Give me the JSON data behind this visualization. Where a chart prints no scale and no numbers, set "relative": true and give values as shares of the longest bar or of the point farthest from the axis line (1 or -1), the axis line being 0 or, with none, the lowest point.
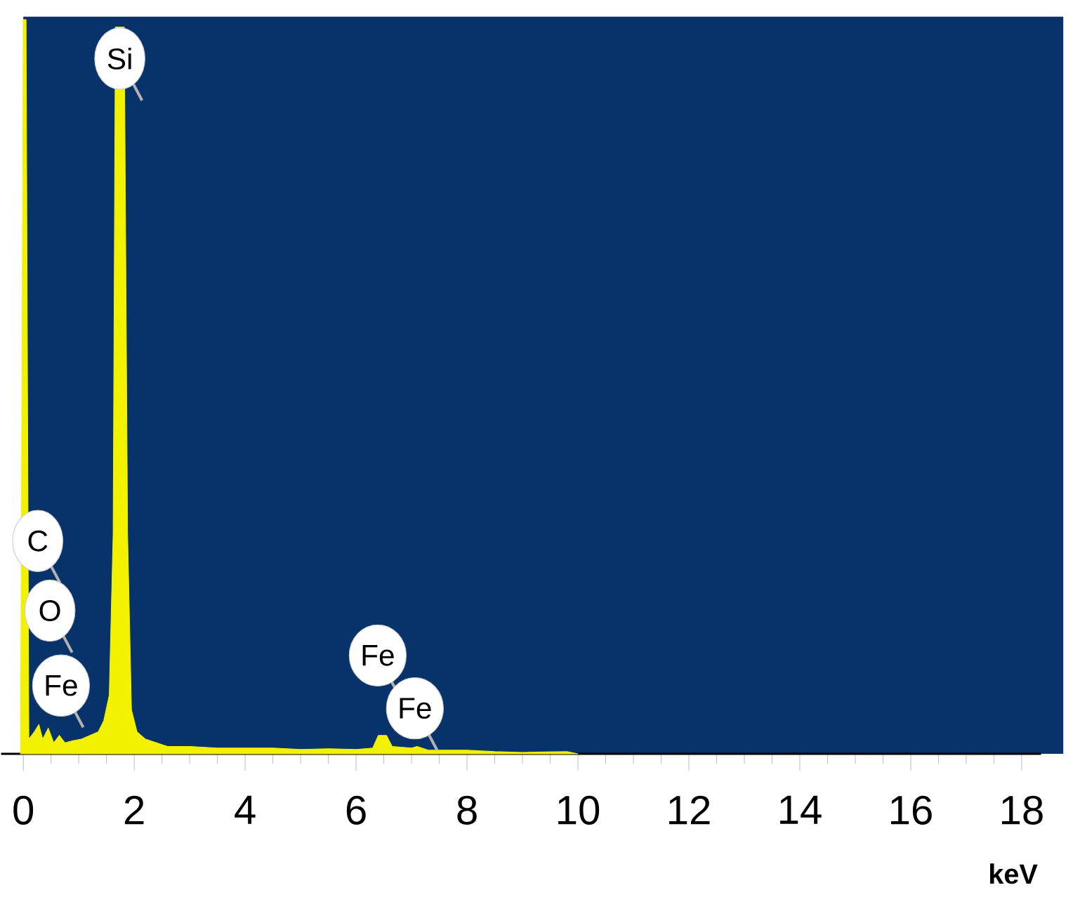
{
  "chart_data": {
    "type": "area",
    "relative": true,
    "xlabel": "keV",
    "color": "#f2f200",
    "x": [
      -0.05,
      0.0,
      0.05,
      0.1,
      0.2,
      0.28,
      0.35,
      0.45,
      0.55,
      0.65,
      0.75,
      0.9,
      1.05,
      1.2,
      1.35,
      1.45,
      1.55,
      1.62,
      1.66,
      1.82,
      1.88,
      1.95,
      2.05,
      2.2,
      2.4,
      2.6,
      3.0,
      3.5,
      4.0,
      4.5,
      5.0,
      5.5,
      6.0,
      6.3,
      6.4,
      6.55,
      6.65,
      7.0,
      7.1,
      7.3,
      8.0,
      8.5,
      9.0,
      9.8,
      10.0
    ],
    "values": [
      0,
      1.0,
      1.0,
      0.02,
      0.03,
      0.04,
      0.02,
      0.035,
      0.015,
      0.025,
      0.015,
      0.018,
      0.02,
      0.025,
      0.03,
      0.045,
      0.08,
      0.3,
      0.99,
      0.99,
      0.3,
      0.06,
      0.03,
      0.02,
      0.015,
      0.01,
      0.01,
      0.008,
      0.008,
      0.008,
      0.006,
      0.007,
      0.006,
      0.008,
      0.025,
      0.025,
      0.01,
      0.008,
      0.01,
      0.005,
      0.005,
      0.003,
      0.002,
      0.003,
      0
    ],
    "xlim": [
      -0.4,
      18.35
    ],
    "xticks": [
      0,
      2,
      4,
      6,
      8,
      10,
      12,
      14,
      16,
      18
    ],
    "annotations": [
      {
        "text": "Si",
        "x": 1.74,
        "y": 0.947
      },
      {
        "text": "C",
        "x": 0.26,
        "y": 0.29
      },
      {
        "text": "O",
        "x": 0.48,
        "y": 0.195
      },
      {
        "text": "Fe",
        "x": 0.68,
        "y": 0.093
      },
      {
        "text": "Fe",
        "x": 6.39,
        "y": 0.134
      },
      {
        "text": "Fe",
        "x": 7.06,
        "y": 0.062
      }
    ]
  }
}
